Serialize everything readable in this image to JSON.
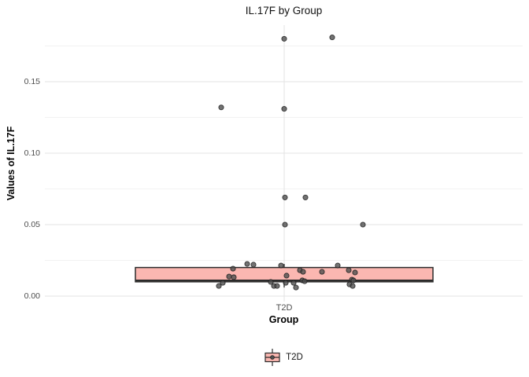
{
  "title": "IL.17F by Group",
  "axes": {
    "y_title": "Values of IL.17F",
    "x_title": "Group",
    "y_tick_labels": [
      "0.00",
      "0.05",
      "0.10",
      "0.15"
    ],
    "x_tick_labels": [
      "T2D"
    ]
  },
  "legend": {
    "label": "T2D"
  },
  "colors": {
    "box_fill": "#FBB7B1",
    "box_stroke": "#2B2B2B",
    "point_fill": "#4F4F4F",
    "point_stroke": "#1F1F1F",
    "grid_major": "#E3E3E3",
    "grid_minor": "#F2F2F2",
    "tick_text": "#4D4D4D"
  },
  "chart_data": {
    "type": "boxplot",
    "title": "IL.17F by Group",
    "xlabel": "Group",
    "ylabel": "Values of IL.17F",
    "categories": [
      "T2D"
    ],
    "ylim": [
      0,
      0.19
    ],
    "y_major_ticks": [
      0,
      0.05,
      0.1,
      0.15
    ],
    "y_minor_ticks": [
      0.025,
      0.075,
      0.125,
      0.175
    ],
    "grid": true,
    "legend_position": "bottom",
    "series": [
      {
        "name": "T2D",
        "box": {
          "q1": 0.01,
          "median": 0.011,
          "q3": 0.02,
          "whisker_low": 0.006,
          "whisker_high": 0.0225
        },
        "points": [
          [
            0,
            0.18
          ],
          [
            61,
            0.181
          ],
          [
            -80,
            0.132
          ],
          [
            0,
            0.131
          ],
          [
            1,
            0.069
          ],
          [
            27,
            0.069
          ],
          [
            1,
            0.05
          ],
          [
            100,
            0.05
          ],
          [
            -47,
            0.0225
          ],
          [
            -39,
            0.022
          ],
          [
            -4,
            0.0214
          ],
          [
            68,
            0.0214
          ],
          [
            -65,
            0.0192
          ],
          [
            20,
            0.0181
          ],
          [
            82,
            0.0181
          ],
          [
            24,
            0.017
          ],
          [
            48,
            0.017
          ],
          [
            90,
            0.0165
          ],
          [
            3,
            0.0143
          ],
          [
            -70,
            0.0137
          ],
          [
            -64,
            0.0132
          ],
          [
            86,
            0.0115
          ],
          [
            88,
            0.011
          ],
          [
            23,
            0.011
          ],
          [
            26,
            0.0104
          ],
          [
            -17,
            0.0099
          ],
          [
            -78,
            0.0093
          ],
          [
            2,
            0.0093
          ],
          [
            12,
            0.0093
          ],
          [
            83,
            0.0082
          ],
          [
            -83,
            0.0071
          ],
          [
            -13,
            0.0071
          ],
          [
            -9,
            0.0071
          ],
          [
            87,
            0.0071
          ],
          [
            15,
            0.006
          ]
        ]
      }
    ]
  }
}
